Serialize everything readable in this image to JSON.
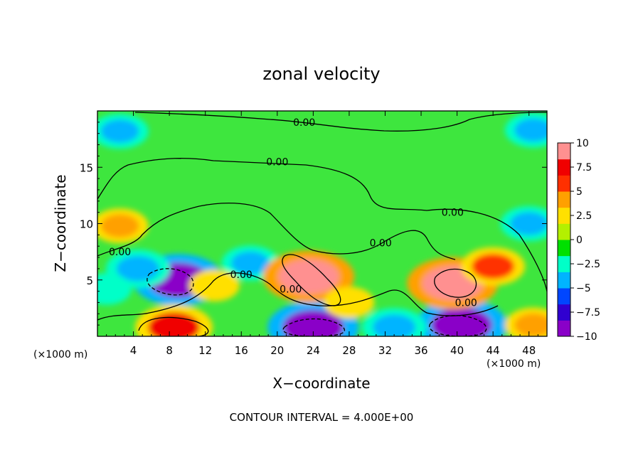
{
  "chart_data": {
    "type": "heatmap",
    "title": "zonal velocity",
    "xlabel": "X−coordinate",
    "ylabel": "Z−coordinate",
    "x_unit_left": "(×1000 m)",
    "x_unit_right": "(×1000 m)",
    "xlim": [
      0,
      50
    ],
    "ylim": [
      0,
      20
    ],
    "x_ticks": [
      4,
      8,
      12,
      16,
      20,
      24,
      28,
      32,
      36,
      40,
      44,
      48
    ],
    "x_tick_labels": [
      "4",
      "8",
      "12",
      "16",
      "20",
      "24",
      "28",
      "32",
      "36",
      "40",
      "44",
      "48"
    ],
    "y_ticks": [
      5,
      10,
      15
    ],
    "y_tick_labels": [
      "5",
      "10",
      "15"
    ],
    "colorbar": {
      "range": [
        -10,
        10
      ],
      "tick_values": [
        10,
        7.5,
        5,
        2.5,
        0,
        -2.5,
        -5,
        -7.5,
        -10
      ],
      "tick_labels": [
        "10",
        "7.5",
        "5",
        "2.5",
        "0",
        "−2.5",
        "−5",
        "−7.5",
        "−10"
      ],
      "colors": [
        "#8a00c8",
        "#3000d0",
        "#0046ff",
        "#00b4ff",
        "#00ffc8",
        "#00e000",
        "#b4f000",
        "#ffe000",
        "#ffa000",
        "#ff3000",
        "#f00000",
        "#ff9090"
      ]
    },
    "contour_labels": [
      {
        "text": "0.00",
        "x": 23,
        "z": 19.0
      },
      {
        "text": "0.00",
        "x": 20,
        "z": 15.5
      },
      {
        "text": "0.00",
        "x": 2.5,
        "z": 7.5
      },
      {
        "text": "0.00",
        "x": 16,
        "z": 5.5
      },
      {
        "text": "0.00",
        "x": 21.5,
        "z": 4.2
      },
      {
        "text": "0.00",
        "x": 31.5,
        "z": 8.3
      },
      {
        "text": "0.00",
        "x": 39.5,
        "z": 11.0
      },
      {
        "text": "0.00",
        "x": 41,
        "z": 3.0
      }
    ],
    "features": [
      {
        "kind": "negative",
        "x": 9,
        "z": 5.0,
        "value": -9
      },
      {
        "kind": "negative",
        "x": 4.5,
        "z": 6.0,
        "value": -5
      },
      {
        "kind": "negative",
        "x": 17,
        "z": 6.5,
        "value": -4
      },
      {
        "kind": "negative",
        "x": 24,
        "z": 0.8,
        "value": -9
      },
      {
        "kind": "negative",
        "x": 40.5,
        "z": 1.0,
        "value": -9
      },
      {
        "kind": "negative",
        "x": 33,
        "z": 0.8,
        "value": -5
      },
      {
        "kind": "negative",
        "x": 2.5,
        "z": 18.2,
        "value": -4
      },
      {
        "kind": "negative",
        "x": 48.5,
        "z": 18.3,
        "value": -4
      },
      {
        "kind": "negative",
        "x": 48,
        "z": 10.0,
        "value": -4
      },
      {
        "kind": "negative",
        "x": 1,
        "z": 4.2,
        "value": -3
      },
      {
        "kind": "positive",
        "x": 23.5,
        "z": 5.3,
        "value": 9
      },
      {
        "kind": "positive",
        "x": 39.5,
        "z": 4.7,
        "value": 9
      },
      {
        "kind": "positive",
        "x": 8.5,
        "z": 0.8,
        "value": 7
      },
      {
        "kind": "positive",
        "x": 44,
        "z": 6.2,
        "value": 5
      },
      {
        "kind": "positive",
        "x": 2.5,
        "z": 9.8,
        "value": 4
      },
      {
        "kind": "positive",
        "x": 13,
        "z": 4.5,
        "value": 3
      },
      {
        "kind": "positive",
        "x": 48.5,
        "z": 1.0,
        "value": 4
      },
      {
        "kind": "positive",
        "x": 28,
        "z": 3.0,
        "value": 3
      }
    ],
    "grid": false,
    "legend": "colorbar-right"
  },
  "footer": {
    "contour_interval": "CONTOUR INTERVAL = 4.000E+00"
  }
}
